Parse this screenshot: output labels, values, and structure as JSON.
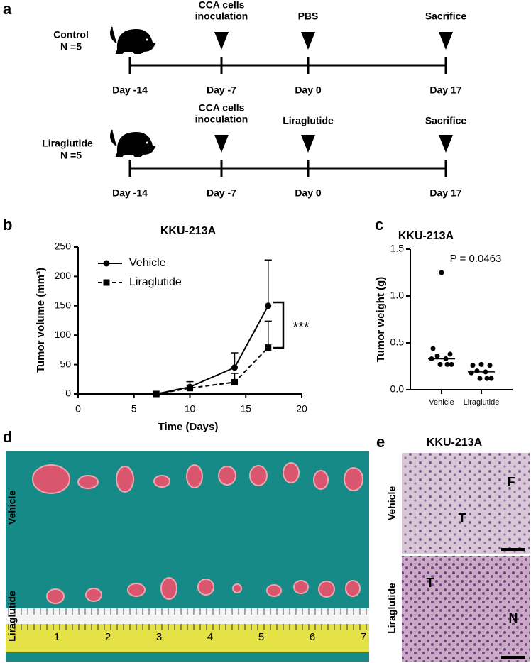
{
  "panels": [
    "a",
    "b",
    "c",
    "d",
    "e"
  ],
  "timeline": {
    "groups": [
      {
        "label": "Control",
        "n": "N =5",
        "events": [
          {
            "day": "Day -14"
          },
          {
            "day": "Day -7",
            "label": [
              "CCA cells",
              "inoculation"
            ]
          },
          {
            "day": "Day 0",
            "label": [
              "PBS"
            ]
          },
          {
            "day": "Day 17",
            "label": [
              "Sacrifice"
            ]
          }
        ]
      },
      {
        "label": "Liraglutide",
        "n": "N =5",
        "events": [
          {
            "day": "Day -14"
          },
          {
            "day": "Day -7",
            "label": [
              "CCA cells",
              "inoculation"
            ]
          },
          {
            "day": "Day 0",
            "label": [
              "Liraglutide"
            ]
          },
          {
            "day": "Day 17",
            "label": [
              "Sacrifice"
            ]
          }
        ]
      }
    ]
  },
  "chart_data": [
    {
      "type": "line",
      "title": "KKU-213A",
      "xlabel": "Time (Days)",
      "ylabel": "Tumor volume (mm³)",
      "x": [
        7,
        10,
        14,
        17
      ],
      "series": [
        {
          "name": "Vehicle",
          "color": "#000000",
          "line_style": "solid",
          "marker": "circle",
          "values": [
            0,
            12,
            45,
            150
          ],
          "errors": [
            0,
            9,
            25,
            78
          ]
        },
        {
          "name": "Liraglutide",
          "color": "#000000",
          "line_style": "dashed",
          "marker": "square",
          "values": [
            0,
            10,
            20,
            79
          ],
          "errors": [
            0,
            5,
            15,
            45
          ]
        }
      ],
      "xlim": [
        0,
        20
      ],
      "xticks": [
        0,
        5,
        10,
        15,
        20
      ],
      "ylim": [
        0,
        250
      ],
      "yticks": [
        0,
        50,
        100,
        150,
        200,
        250
      ],
      "annotation": "***",
      "legend": "upper left"
    },
    {
      "type": "dot",
      "title": "KKU-213A",
      "ylabel": "Tumor weight (g)",
      "groups": [
        {
          "name": "Vehicle",
          "values": [
            1.25,
            0.44,
            0.38,
            0.36,
            0.33,
            0.33,
            0.27,
            0.27,
            0.27
          ],
          "median": 0.33
        },
        {
          "name": "Liraglutide",
          "values": [
            0.27,
            0.26,
            0.26,
            0.2,
            0.19,
            0.18,
            0.12,
            0.12,
            0.12
          ],
          "median": 0.19
        }
      ],
      "ylim": [
        0,
        1.5
      ],
      "yticks": [
        {
          "value": 0,
          "label": "0.0"
        },
        {
          "value": 0.5,
          "label": "0.5"
        },
        {
          "value": 1,
          "label": "1.0"
        },
        {
          "value": 1.5,
          "label": "1.5"
        }
      ],
      "annotation": "P = 0.0463"
    }
  ],
  "photo": {
    "rows": [
      "Vehicle",
      "Liraglutide"
    ],
    "ruler": [
      "1",
      "2",
      "3",
      "4",
      "5",
      "6",
      "7"
    ]
  },
  "histology": {
    "title": "KKU-213A",
    "rows": [
      "Vehicle",
      "Liraglutide"
    ],
    "regions": [
      "F",
      "T",
      "T",
      "N"
    ]
  }
}
